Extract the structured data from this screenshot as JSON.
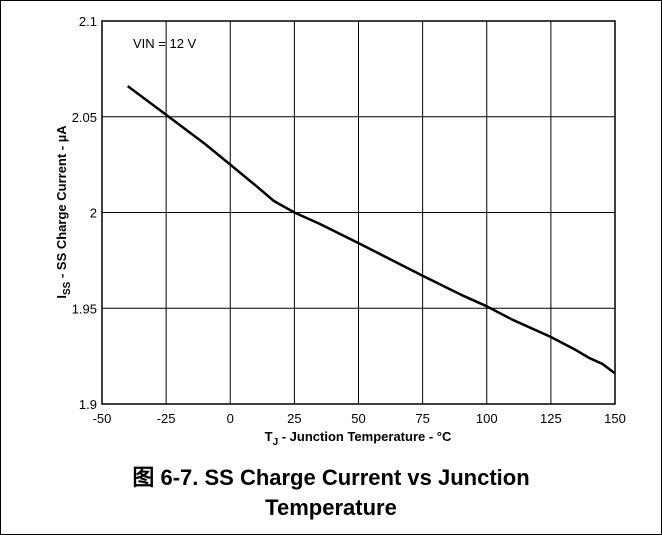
{
  "chart_data": {
    "type": "line",
    "annotation": "VIN = 12 V",
    "xlabel_main": "T",
    "xlabel_sub": "J",
    "xlabel_rest": " - Junction Temperature - °C",
    "ylabel_main": "I",
    "ylabel_sub": "SS",
    "ylabel_rest": " - SS Charge Current - µA",
    "xlim": [
      -50,
      150
    ],
    "ylim": [
      1.9,
      2.1
    ],
    "xticks": [
      -50,
      -25,
      0,
      25,
      50,
      75,
      100,
      125,
      150
    ],
    "xtick_labels": [
      "-50",
      "-25",
      "0",
      "25",
      "50",
      "75",
      "100",
      "125",
      "150"
    ],
    "yticks": [
      1.9,
      1.95,
      2.0,
      2.05,
      2.1
    ],
    "ytick_labels": [
      "1.9",
      "1.95",
      "2",
      "2.05",
      "2.1"
    ],
    "grid": true,
    "series": [
      {
        "x": [
          -40,
          -25,
          -10,
          0,
          10,
          17,
          25,
          35,
          50,
          75,
          90,
          100,
          110,
          125,
          135,
          140,
          145,
          150
        ],
        "y": [
          2.066,
          2.051,
          2.036,
          2.025,
          2.014,
          2.006,
          2.0,
          1.994,
          1.984,
          1.967,
          1.957,
          1.951,
          1.944,
          1.935,
          1.928,
          1.924,
          1.921,
          1.916
        ]
      }
    ]
  },
  "caption": {
    "line1": "图 6-7. SS Charge Current vs Junction",
    "line2": "Temperature"
  },
  "colors": {
    "line": "#000000",
    "grid": "#000000",
    "background": "#ffffff"
  }
}
